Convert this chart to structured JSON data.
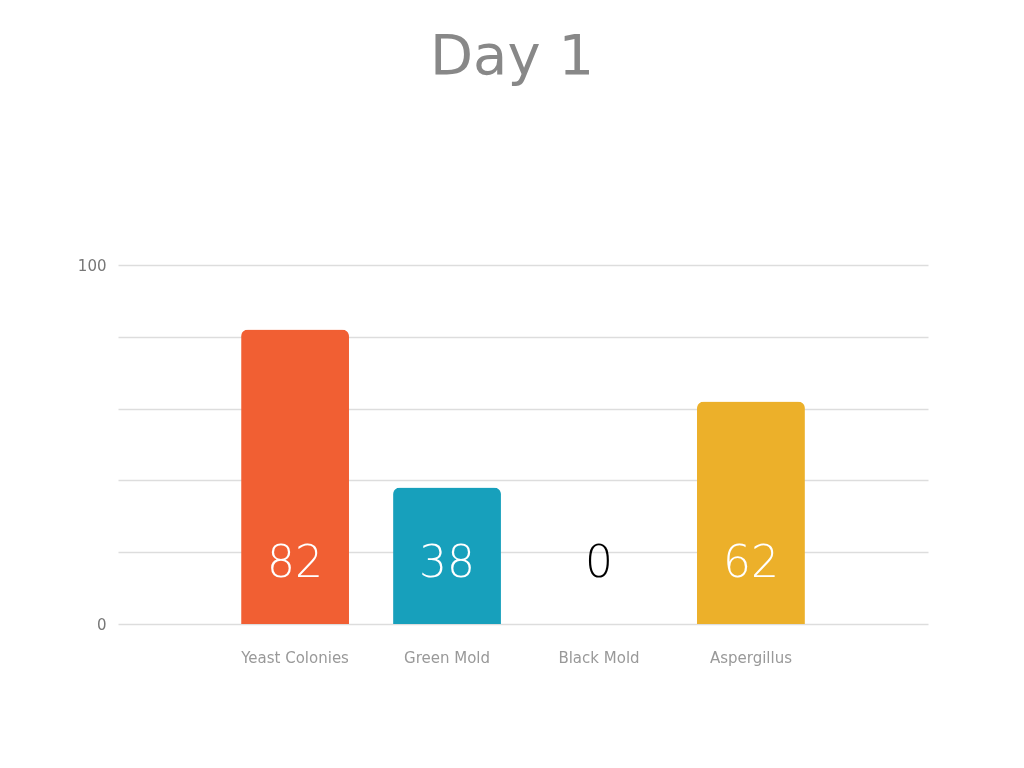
{
  "chart_data": {
    "type": "bar",
    "title": "Day 1",
    "categories": [
      "Yeast Colonies",
      "Green Mold",
      "Black Mold",
      "Aspergillus"
    ],
    "values": [
      82,
      38,
      0,
      62
    ],
    "colors": [
      "#f15f33",
      "#17a0bc",
      "#000000",
      "#ecb02a"
    ],
    "ylim": [
      0,
      100
    ],
    "yticks": [
      0,
      {
        "value": 20,
        "label": null
      },
      {
        "value": 40,
        "label": null
      },
      {
        "value": 60,
        "label": null
      },
      {
        "value": 80,
        "label": null
      },
      100
    ],
    "grid": true,
    "data_labels": true
  }
}
